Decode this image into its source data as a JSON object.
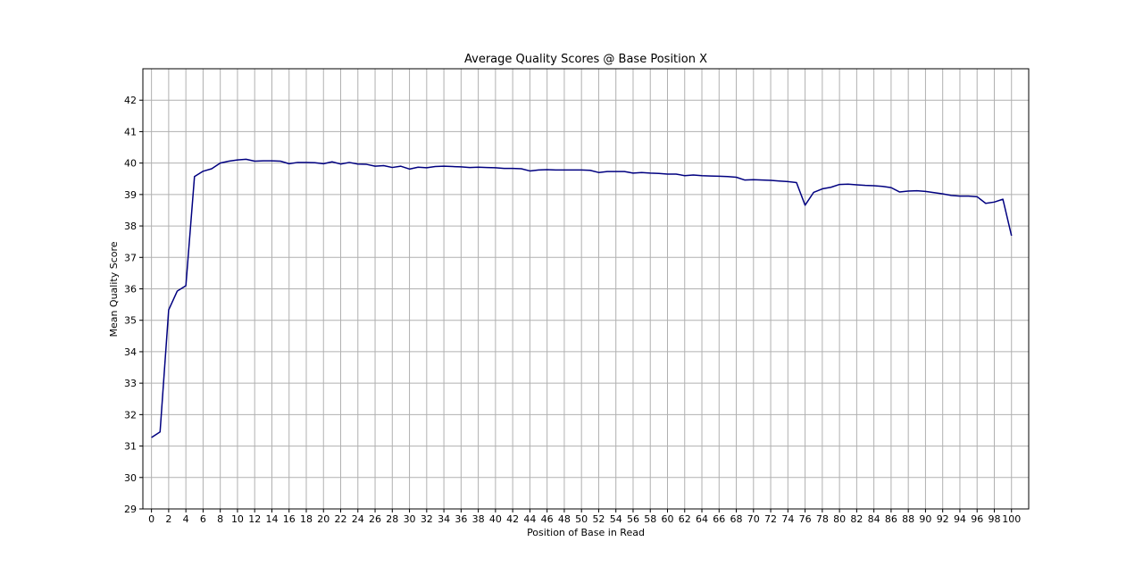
{
  "chart_data": {
    "type": "line",
    "title": "Average Quality Scores @ Base Position X",
    "xlabel": "Position of Base in Read",
    "ylabel": "Mean Quality Score",
    "xlim": [
      -1,
      102
    ],
    "ylim": [
      29,
      43
    ],
    "x_ticks": [
      0,
      2,
      4,
      6,
      8,
      10,
      12,
      14,
      16,
      18,
      20,
      22,
      24,
      26,
      28,
      30,
      32,
      34,
      36,
      38,
      40,
      42,
      44,
      46,
      48,
      50,
      52,
      54,
      56,
      58,
      60,
      62,
      64,
      66,
      68,
      70,
      72,
      74,
      76,
      78,
      80,
      82,
      84,
      86,
      88,
      90,
      92,
      94,
      96,
      98,
      100
    ],
    "y_ticks": [
      29,
      30,
      31,
      32,
      33,
      34,
      35,
      36,
      37,
      38,
      39,
      40,
      41,
      42
    ],
    "grid": true,
    "line_color": "#000080",
    "series": [
      {
        "x": [
          0,
          1,
          2,
          3,
          4,
          5,
          6,
          7,
          8,
          9,
          10,
          11,
          12,
          13,
          14,
          15,
          16,
          17,
          18,
          19,
          20,
          21,
          22,
          23,
          24,
          25,
          26,
          27,
          28,
          29,
          30,
          31,
          32,
          33,
          34,
          35,
          36,
          37,
          38,
          39,
          40,
          41,
          42,
          43,
          44,
          45,
          46,
          47,
          48,
          49,
          50,
          51,
          52,
          53,
          54,
          55,
          56,
          57,
          58,
          59,
          60,
          61,
          62,
          63,
          64,
          65,
          66,
          67,
          68,
          69,
          70,
          71,
          72,
          73,
          74,
          75,
          76,
          77,
          78,
          79,
          80,
          81,
          82,
          83,
          84,
          85,
          86,
          87,
          88,
          89,
          90,
          91,
          92,
          93,
          94,
          95,
          96,
          97,
          98,
          99,
          100
        ],
        "values": [
          31.27,
          31.45,
          35.33,
          35.93,
          36.1,
          39.57,
          39.74,
          39.82,
          40.0,
          40.06,
          40.1,
          40.12,
          40.06,
          40.07,
          40.07,
          40.06,
          39.98,
          40.02,
          40.02,
          40.01,
          39.98,
          40.04,
          39.97,
          40.02,
          39.97,
          39.96,
          39.9,
          39.92,
          39.86,
          39.9,
          39.81,
          39.87,
          39.85,
          39.89,
          39.9,
          39.89,
          39.88,
          39.86,
          39.87,
          39.86,
          39.85,
          39.83,
          39.83,
          39.82,
          39.75,
          39.78,
          39.79,
          39.78,
          39.78,
          39.78,
          39.78,
          39.77,
          39.7,
          39.73,
          39.73,
          39.73,
          39.68,
          39.7,
          39.68,
          39.67,
          39.65,
          39.65,
          39.6,
          39.62,
          39.6,
          39.59,
          39.58,
          39.57,
          39.55,
          39.46,
          39.47,
          39.46,
          39.45,
          39.43,
          39.41,
          39.38,
          38.66,
          39.07,
          39.18,
          39.23,
          39.32,
          39.33,
          39.31,
          39.29,
          39.28,
          39.26,
          39.22,
          39.08,
          39.11,
          39.12,
          39.1,
          39.06,
          39.02,
          38.97,
          38.95,
          38.95,
          38.93,
          38.72,
          38.76,
          38.85,
          37.69
        ]
      }
    ]
  }
}
